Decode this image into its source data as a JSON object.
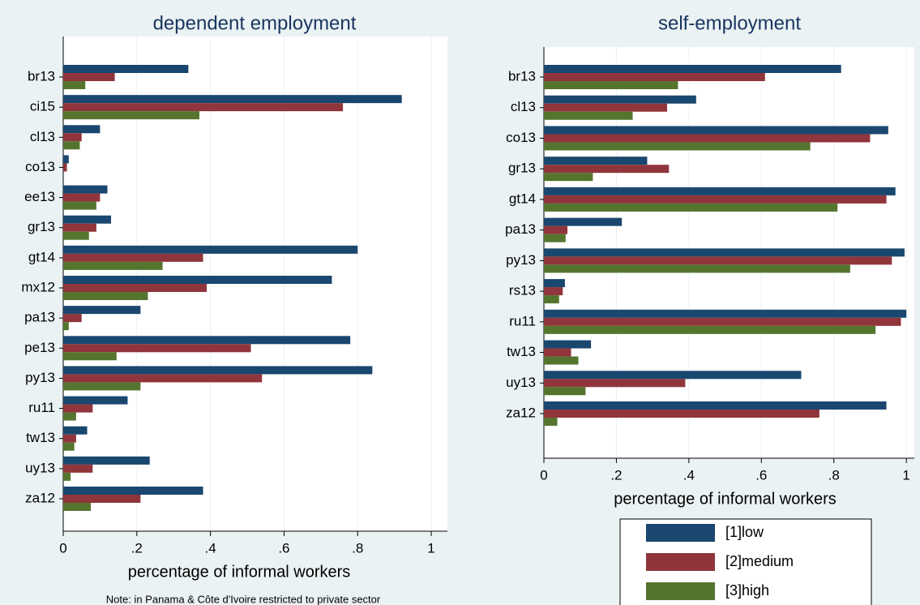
{
  "chart_data": [
    {
      "type": "hbar",
      "title": "dependent employment",
      "xlabel": "percentage of informal workers",
      "note": "Note: in Panama & Côte d'Ivoire restricted to private sector",
      "categories": [
        "br13",
        "ci15",
        "cl13",
        "co13",
        "ee13",
        "gr13",
        "gt14",
        "mx12",
        "pa13",
        "pe13",
        "py13",
        "ru11",
        "tw13",
        "uy13",
        "za12"
      ],
      "series": [
        {
          "name": "[1]low",
          "color": "#1a476f",
          "values": [
            0.34,
            0.92,
            0.1,
            0.015,
            0.12,
            0.13,
            0.8,
            0.73,
            0.21,
            0.78,
            0.84,
            0.175,
            0.065,
            0.235,
            0.38
          ]
        },
        {
          "name": "[2]medium",
          "color": "#90353b",
          "values": [
            0.14,
            0.76,
            0.05,
            0.01,
            0.1,
            0.09,
            0.38,
            0.39,
            0.05,
            0.51,
            0.54,
            0.08,
            0.035,
            0.08,
            0.21
          ]
        },
        {
          "name": "[3]high",
          "color": "#55752f",
          "values": [
            0.06,
            0.37,
            0.045,
            0,
            0.09,
            0.07,
            0.27,
            0.23,
            0.015,
            0.145,
            0.21,
            0.035,
            0.03,
            0.02,
            0.075
          ]
        }
      ],
      "xlim": [
        0,
        1.044
      ],
      "xticks": [
        0,
        {
          "value": 0.2,
          "label": ".2"
        },
        {
          "value": 0.4,
          "label": ".4"
        },
        {
          "value": 0.6,
          "label": ".6"
        },
        {
          "value": 0.8,
          "label": ".8"
        },
        1
      ],
      "grid": true
    },
    {
      "type": "hbar",
      "title": "self-employment",
      "xlabel": "percentage of informal workers",
      "categories": [
        "br13",
        "cl13",
        "co13",
        "gr13",
        "gt14",
        "pa13",
        "py13",
        "rs13",
        "ru11",
        "tw13",
        "uy13",
        "za12"
      ],
      "series": [
        {
          "color": "#1a476f",
          "values": [
            0.82,
            0.42,
            0.95,
            0.285,
            0.97,
            0.215,
            0.995,
            0.058,
            1.0,
            0.13,
            0.71,
            0.945
          ]
        },
        {
          "color": "#90353b",
          "values": [
            0.61,
            0.34,
            0.9,
            0.345,
            0.945,
            0.065,
            0.96,
            0.052,
            0.985,
            0.075,
            0.39,
            0.76
          ]
        },
        {
          "color": "#55752f",
          "values": [
            0.37,
            0.245,
            0.735,
            0.135,
            0.81,
            0.06,
            0.845,
            0.042,
            0.915,
            0.095,
            0.115,
            0.037
          ]
        }
      ],
      "xlim": [
        0,
        1.022
      ],
      "xticks": [
        0,
        {
          "value": 0.2,
          "label": ".2"
        },
        {
          "value": 0.4,
          "label": ".4"
        },
        {
          "value": 0.6,
          "label": ".6"
        },
        {
          "value": 0.8,
          "label": ".8"
        },
        1
      ],
      "grid": true
    }
  ]
}
